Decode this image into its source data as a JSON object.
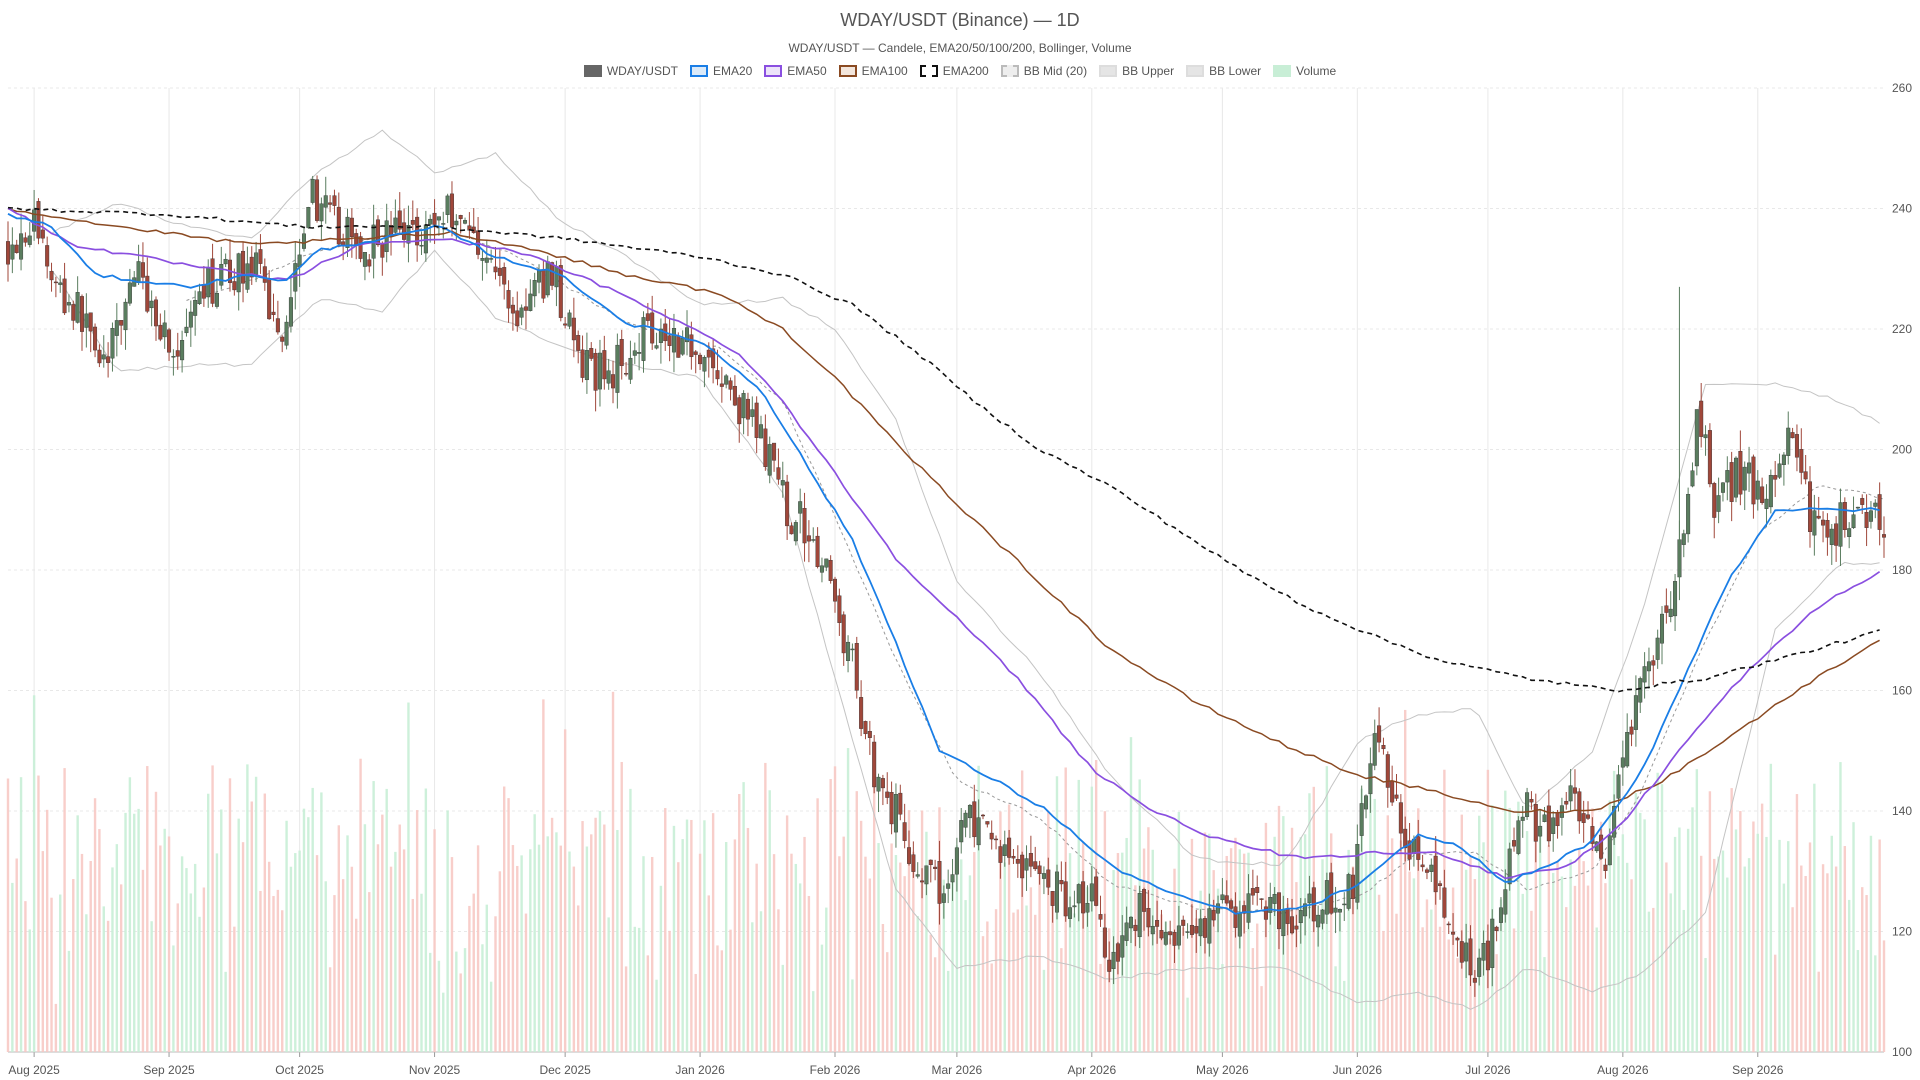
{
  "chart_data": {
    "type": "candlestick",
    "title": "WDAY/USDT (Binance) — 1D",
    "subtitle": "WDAY/USDT — Candele, EMA20/50/100/200, Bollinger, Volume",
    "legend": [
      {
        "name": "WDAY/USDT",
        "fill": "#666666",
        "stroke": "#666666",
        "dash": false
      },
      {
        "name": "EMA20",
        "fill": "#dbeaf9",
        "stroke": "#1a7ee6",
        "dash": false
      },
      {
        "name": "EMA50",
        "fill": "#ece3f9",
        "stroke": "#8a4fe0",
        "dash": false
      },
      {
        "name": "EMA100",
        "fill": "#f3e6dc",
        "stroke": "#8a4a22",
        "dash": false
      },
      {
        "name": "EMA200",
        "fill": "#ffffff",
        "stroke": "#111111",
        "dash": true
      },
      {
        "name": "BB Mid (20)",
        "fill": "#eeeeee",
        "stroke": "#bbbbbb",
        "dash": true
      },
      {
        "name": "BB Upper",
        "fill": "#e5e5e5",
        "stroke": "#dddddd",
        "dash": false
      },
      {
        "name": "BB Lower",
        "fill": "#e5e5e5",
        "stroke": "#dddddd",
        "dash": false
      },
      {
        "name": "Volume",
        "fill": "#c8eed6",
        "stroke": "#c8eed6",
        "dash": false
      }
    ],
    "y_axis": {
      "min": 100,
      "max": 260,
      "ticks": [
        100,
        120,
        140,
        160,
        180,
        200,
        220,
        240,
        260
      ]
    },
    "x_axis": {
      "start": "2025-07-26",
      "end": "2026-09-30",
      "ticks": [
        {
          "label": "Aug 2025",
          "date": "2025-08-01"
        },
        {
          "label": "Sep 2025",
          "date": "2025-09-01"
        },
        {
          "label": "Oct 2025",
          "date": "2025-10-01"
        },
        {
          "label": "Nov 2025",
          "date": "2025-11-01"
        },
        {
          "label": "Dec 2025",
          "date": "2025-12-01"
        },
        {
          "label": "Jan 2026",
          "date": "2026-01-01"
        },
        {
          "label": "Feb 2026",
          "date": "2026-02-01"
        },
        {
          "label": "Mar 2026",
          "date": "2026-03-01"
        },
        {
          "label": "Apr 2026",
          "date": "2026-04-01"
        },
        {
          "label": "May 2026",
          "date": "2026-05-01"
        },
        {
          "label": "Jun 2026",
          "date": "2026-06-01"
        },
        {
          "label": "Jul 2026",
          "date": "2026-07-01"
        },
        {
          "label": "Aug 2026",
          "date": "2026-08-01"
        },
        {
          "label": "Sep 2026",
          "date": "2026-09-01"
        }
      ]
    },
    "colors": {
      "up": "#5a7d5f",
      "down": "#a0473a",
      "vol_up": "#c8eed6",
      "vol_down": "#f7c9c4",
      "ema20": "#1a7ee6",
      "ema50": "#8a4fe0",
      "ema100": "#8a4a22",
      "ema200": "#111111",
      "bb_mid": "#999999",
      "bb_band": "#c4c4c4",
      "grid": "#e8e8e8"
    },
    "close_anchors": [
      [
        "2025-07-26",
        234
      ],
      [
        "2025-08-01",
        238
      ],
      [
        "2025-08-06",
        227
      ],
      [
        "2025-08-12",
        222
      ],
      [
        "2025-08-18",
        214
      ],
      [
        "2025-08-24",
        230
      ],
      [
        "2025-09-03",
        215
      ],
      [
        "2025-09-10",
        227
      ],
      [
        "2025-09-20",
        231
      ],
      [
        "2025-09-27",
        219
      ],
      [
        "2025-10-03",
        243
      ],
      [
        "2025-10-08",
        238
      ],
      [
        "2025-10-15",
        233
      ],
      [
        "2025-10-22",
        236
      ],
      [
        "2025-10-30",
        237
      ],
      [
        "2025-11-05",
        240
      ],
      [
        "2025-11-12",
        234
      ],
      [
        "2025-11-20",
        222
      ],
      [
        "2025-11-28",
        230
      ],
      [
        "2025-12-05",
        213
      ],
      [
        "2025-12-12",
        213
      ],
      [
        "2025-12-20",
        221
      ],
      [
        "2026-01-01",
        217
      ],
      [
        "2026-01-08",
        209
      ],
      [
        "2026-01-15",
        202
      ],
      [
        "2026-01-21",
        190
      ],
      [
        "2026-01-27",
        186
      ],
      [
        "2026-02-04",
        167
      ],
      [
        "2026-02-10",
        147
      ],
      [
        "2026-02-16",
        138
      ],
      [
        "2026-02-20",
        130
      ],
      [
        "2026-02-26",
        126
      ],
      [
        "2026-03-03",
        140
      ],
      [
        "2026-03-08",
        135
      ],
      [
        "2026-03-13",
        133
      ],
      [
        "2026-03-19",
        130
      ],
      [
        "2026-03-25",
        126
      ],
      [
        "2026-04-01",
        126
      ],
      [
        "2026-04-05",
        116
      ],
      [
        "2026-04-12",
        124
      ],
      [
        "2026-04-20",
        117
      ],
      [
        "2026-04-27",
        122
      ],
      [
        "2026-05-05",
        124
      ],
      [
        "2026-05-12",
        125
      ],
      [
        "2026-05-18",
        121
      ],
      [
        "2026-05-24",
        125
      ],
      [
        "2026-05-31",
        127
      ],
      [
        "2026-06-04",
        151
      ],
      [
        "2026-06-08",
        146
      ],
      [
        "2026-06-13",
        135
      ],
      [
        "2026-06-18",
        128
      ],
      [
        "2026-06-23",
        119
      ],
      [
        "2026-06-28",
        114
      ],
      [
        "2026-07-01",
        117
      ],
      [
        "2026-07-06",
        133
      ],
      [
        "2026-07-10",
        140
      ],
      [
        "2026-07-15",
        136
      ],
      [
        "2026-07-20",
        141
      ],
      [
        "2026-07-25",
        134
      ],
      [
        "2026-07-28",
        128
      ],
      [
        "2026-08-01",
        148
      ],
      [
        "2026-08-05",
        160
      ],
      [
        "2026-08-10",
        170
      ],
      [
        "2026-08-15",
        185
      ],
      [
        "2026-08-18",
        206
      ],
      [
        "2026-08-22",
        192
      ],
      [
        "2026-08-28",
        196
      ],
      [
        "2026-09-03",
        191
      ],
      [
        "2026-09-08",
        203
      ],
      [
        "2026-09-13",
        189
      ],
      [
        "2026-09-18",
        186
      ],
      [
        "2026-09-23",
        191
      ],
      [
        "2026-09-27",
        190
      ],
      [
        "2026-09-30",
        188
      ]
    ],
    "indicator_paths": {
      "ema20": [
        [
          "2025-07-26",
          239
        ],
        [
          "2025-08-05",
          237
        ],
        [
          "2025-08-15",
          229
        ],
        [
          "2025-08-25",
          228
        ],
        [
          "2025-09-05",
          227
        ],
        [
          "2025-09-20",
          229
        ],
        [
          "2025-09-28",
          228
        ],
        [
          "2025-10-05",
          233
        ],
        [
          "2025-10-20",
          235
        ],
        [
          "2025-11-02",
          237
        ],
        [
          "2025-11-15",
          232
        ],
        [
          "2025-11-30",
          229
        ],
        [
          "2025-12-15",
          221
        ],
        [
          "2026-01-01",
          218
        ],
        [
          "2026-01-15",
          210
        ],
        [
          "2026-01-25",
          198
        ],
        [
          "2026-02-05",
          185
        ],
        [
          "2026-02-15",
          168
        ],
        [
          "2026-02-25",
          150
        ],
        [
          "2026-03-10",
          145
        ],
        [
          "2026-03-22",
          140
        ],
        [
          "2026-04-05",
          131
        ],
        [
          "2026-04-20",
          126
        ],
        [
          "2026-05-05",
          123
        ],
        [
          "2026-05-20",
          124
        ],
        [
          "2026-06-02",
          128
        ],
        [
          "2026-06-15",
          136
        ],
        [
          "2026-06-25",
          134
        ],
        [
          "2026-07-05",
          128
        ],
        [
          "2026-07-15",
          131
        ],
        [
          "2026-07-25",
          135
        ],
        [
          "2026-08-05",
          146
        ],
        [
          "2026-08-15",
          162
        ],
        [
          "2026-08-25",
          178
        ],
        [
          "2026-09-05",
          190
        ],
        [
          "2026-09-15",
          190
        ],
        [
          "2026-09-30",
          190
        ]
      ],
      "ema50": [
        [
          "2025-07-26",
          240
        ],
        [
          "2025-08-10",
          234
        ],
        [
          "2025-08-25",
          232
        ],
        [
          "2025-09-10",
          230
        ],
        [
          "2025-09-28",
          228
        ],
        [
          "2025-10-15",
          234
        ],
        [
          "2025-11-02",
          235
        ],
        [
          "2025-11-20",
          233
        ],
        [
          "2025-12-10",
          227
        ],
        [
          "2025-12-25",
          222
        ],
        [
          "2026-01-10",
          216
        ],
        [
          "2026-01-20",
          208
        ],
        [
          "2026-02-01",
          196
        ],
        [
          "2026-02-15",
          182
        ],
        [
          "2026-03-01",
          172
        ],
        [
          "2026-03-15",
          162
        ],
        [
          "2026-04-01",
          147
        ],
        [
          "2026-04-15",
          140
        ],
        [
          "2026-05-01",
          135
        ],
        [
          "2026-05-20",
          132
        ],
        [
          "2026-06-05",
          133
        ],
        [
          "2026-06-20",
          133
        ],
        [
          "2026-07-05",
          129
        ],
        [
          "2026-07-20",
          131
        ],
        [
          "2026-08-01",
          138
        ],
        [
          "2026-08-15",
          151
        ],
        [
          "2026-08-28",
          162
        ],
        [
          "2026-09-15",
          174
        ],
        [
          "2026-09-30",
          180
        ]
      ],
      "ema100": [
        [
          "2025-07-26",
          240
        ],
        [
          "2025-08-20",
          237
        ],
        [
          "2025-09-20",
          234
        ],
        [
          "2025-10-15",
          235
        ],
        [
          "2025-11-05",
          236
        ],
        [
          "2025-11-25",
          233
        ],
        [
          "2025-12-15",
          229
        ],
        [
          "2026-01-05",
          226
        ],
        [
          "2026-01-20",
          220
        ],
        [
          "2026-02-01",
          212
        ],
        [
          "2026-02-15",
          201
        ],
        [
          "2026-03-01",
          191
        ],
        [
          "2026-03-20",
          178
        ],
        [
          "2026-04-05",
          167
        ],
        [
          "2026-04-25",
          158
        ],
        [
          "2026-05-15",
          151
        ],
        [
          "2026-06-01",
          146
        ],
        [
          "2026-06-20",
          143
        ],
        [
          "2026-07-05",
          140
        ],
        [
          "2026-07-25",
          140
        ],
        [
          "2026-08-10",
          145
        ],
        [
          "2026-08-25",
          152
        ],
        [
          "2026-09-10",
          160
        ],
        [
          "2026-09-30",
          169
        ]
      ],
      "ema200": [
        [
          "2025-07-26",
          240
        ],
        [
          "2025-09-01",
          239
        ],
        [
          "2025-10-01",
          237
        ],
        [
          "2025-11-01",
          237
        ],
        [
          "2025-12-01",
          235
        ],
        [
          "2026-01-01",
          232
        ],
        [
          "2026-01-20",
          229
        ],
        [
          "2026-02-05",
          224
        ],
        [
          "2026-02-20",
          216
        ],
        [
          "2026-03-05",
          208
        ],
        [
          "2026-03-20",
          200
        ],
        [
          "2026-04-05",
          194
        ],
        [
          "2026-04-20",
          187
        ],
        [
          "2026-05-05",
          180
        ],
        [
          "2026-05-20",
          174
        ],
        [
          "2026-06-05",
          169
        ],
        [
          "2026-06-20",
          165
        ],
        [
          "2026-07-10",
          162
        ],
        [
          "2026-07-30",
          160
        ],
        [
          "2026-08-20",
          162
        ],
        [
          "2026-09-10",
          166
        ],
        [
          "2026-09-30",
          170
        ]
      ],
      "bb_mid": [
        [
          "2025-09-05",
          225
        ],
        [
          "2025-09-20",
          228
        ],
        [
          "2025-10-05",
          233
        ],
        [
          "2025-11-01",
          237
        ],
        [
          "2025-11-20",
          232
        ],
        [
          "2025-12-15",
          221
        ],
        [
          "2026-01-05",
          217
        ],
        [
          "2026-01-20",
          208
        ],
        [
          "2026-02-01",
          189
        ],
        [
          "2026-02-15",
          165
        ],
        [
          "2026-03-01",
          145
        ],
        [
          "2026-03-20",
          139
        ],
        [
          "2026-04-05",
          128
        ],
        [
          "2026-04-25",
          124
        ],
        [
          "2026-05-15",
          123
        ],
        [
          "2026-06-02",
          126
        ],
        [
          "2026-06-15",
          133
        ],
        [
          "2026-06-28",
          133
        ],
        [
          "2026-07-10",
          127
        ],
        [
          "2026-07-25",
          130
        ],
        [
          "2026-08-05",
          143
        ],
        [
          "2026-08-18",
          165
        ],
        [
          "2026-09-01",
          186
        ],
        [
          "2026-09-15",
          194
        ],
        [
          "2026-09-30",
          192
        ]
      ],
      "bb_upper": [
        [
          "2025-08-05",
          236
        ],
        [
          "2025-08-20",
          241
        ],
        [
          "2025-09-05",
          237
        ],
        [
          "2025-09-20",
          235
        ],
        [
          "2025-10-05",
          246
        ],
        [
          "2025-10-20",
          253
        ],
        [
          "2025-11-01",
          246
        ],
        [
          "2025-11-15",
          249
        ],
        [
          "2025-11-30",
          238
        ],
        [
          "2025-12-15",
          232
        ],
        [
          "2026-01-01",
          224
        ],
        [
          "2026-01-20",
          225
        ],
        [
          "2026-02-01",
          220
        ],
        [
          "2026-02-15",
          205
        ],
        [
          "2026-03-01",
          178
        ],
        [
          "2026-03-20",
          163
        ],
        [
          "2026-04-05",
          146
        ],
        [
          "2026-04-25",
          132
        ],
        [
          "2026-05-15",
          131
        ],
        [
          "2026-06-02",
          152
        ],
        [
          "2026-06-15",
          156
        ],
        [
          "2026-06-28",
          157
        ],
        [
          "2026-07-10",
          140
        ],
        [
          "2026-07-25",
          150
        ],
        [
          "2026-08-05",
          172
        ],
        [
          "2026-08-20",
          211
        ],
        [
          "2026-09-05",
          211
        ],
        [
          "2026-09-20",
          208
        ],
        [
          "2026-09-30",
          204
        ]
      ],
      "bb_lower": [
        [
          "2025-08-05",
          230
        ],
        [
          "2025-08-20",
          213
        ],
        [
          "2025-09-05",
          214
        ],
        [
          "2025-09-20",
          214
        ],
        [
          "2025-10-05",
          225
        ],
        [
          "2025-10-20",
          223
        ],
        [
          "2025-11-01",
          233
        ],
        [
          "2025-11-15",
          222
        ],
        [
          "2025-11-30",
          217
        ],
        [
          "2025-12-15",
          214
        ],
        [
          "2026-01-01",
          212
        ],
        [
          "2026-01-20",
          193
        ],
        [
          "2026-02-01",
          162
        ],
        [
          "2026-02-15",
          127
        ],
        [
          "2026-03-01",
          114
        ],
        [
          "2026-03-20",
          116
        ],
        [
          "2026-04-05",
          112
        ],
        [
          "2026-04-25",
          114
        ],
        [
          "2026-05-15",
          114
        ],
        [
          "2026-06-02",
          108
        ],
        [
          "2026-06-15",
          110
        ],
        [
          "2026-06-28",
          107
        ],
        [
          "2026-07-10",
          114
        ],
        [
          "2026-07-25",
          110
        ],
        [
          "2026-08-05",
          113
        ],
        [
          "2026-08-20",
          123
        ],
        [
          "2026-09-05",
          170
        ],
        [
          "2026-09-20",
          181
        ],
        [
          "2026-09-30",
          181
        ]
      ]
    }
  }
}
